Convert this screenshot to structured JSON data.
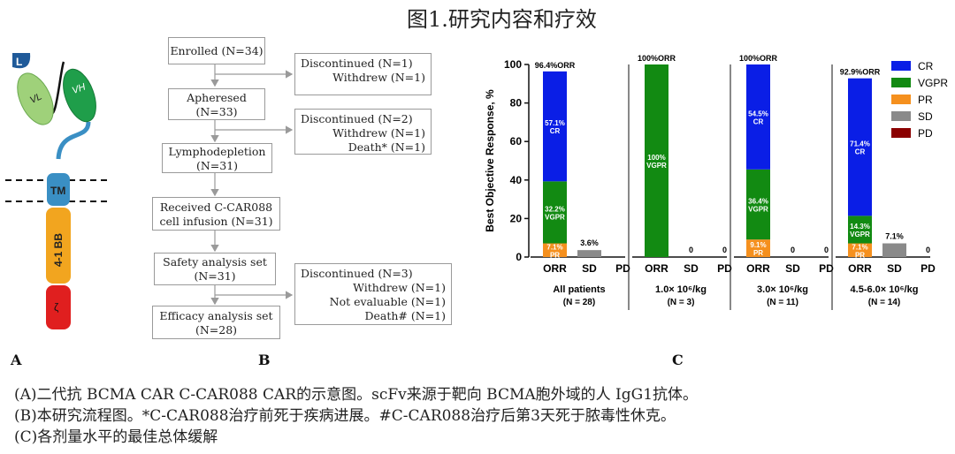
{
  "title": "图1.研究内容和疗效",
  "panel_labels": {
    "a": "A",
    "b": "B",
    "c": "C"
  },
  "captions": [
    "(A)二代抗 BCMA CAR C-CAR088 CAR的示意图。scFv来源于靶向 BCMA胞外域的人 IgG1抗体。",
    "(B)本研究流程图。*C-CAR088治疗前死于疾病进展。#C-CAR088治疗后第3天死于脓毒性休克。",
    "(C)各剂量水平的最佳总体缓解"
  ],
  "car_diagram": {
    "leader": "L",
    "vl": "VL",
    "vh": "VH",
    "tm": "TM",
    "costim": "4-1 BB",
    "zeta": "ζ",
    "colors": {
      "leader": "#1f5a99",
      "vl": "#9fd17a",
      "vh": "#1f9e4a",
      "hinge": "#3a8fc4",
      "tm": "#3a8fc4",
      "costim": "#f2a51f",
      "zeta": "#e01f1f"
    }
  },
  "flowchart": {
    "enrolled": [
      "Enrolled (N=34)"
    ],
    "apheresed": [
      "Apheresed",
      "(N=33)"
    ],
    "lymphodepletion": [
      "Lymphodepletion",
      "(N=31)"
    ],
    "received": [
      "Received C-CAR088",
      "cell infusion (N=31)"
    ],
    "safety": [
      "Safety analysis set",
      "(N=31)"
    ],
    "efficacy": [
      "Efficacy analysis set",
      "(N=28)"
    ],
    "side1": {
      "head": "Discontinued (N=1)",
      "items": [
        "Withdrew (N=1)"
      ]
    },
    "side2": {
      "head": "Discontinued (N=2)",
      "items": [
        "Withdrew (N=1)",
        "Death* (N=1)"
      ]
    },
    "side3": {
      "head": "Discontinued (N=3)",
      "items": [
        "Withdrew (N=1)",
        "Not evaluable (N=1)",
        "Death# (N=1)"
      ]
    }
  },
  "chart_data": {
    "type": "bar",
    "stacked": true,
    "ylabel": "Best Objective Response, %",
    "ylim": [
      0,
      100
    ],
    "yticks": [
      0,
      20,
      40,
      60,
      80,
      100
    ],
    "legend_position": "right",
    "legend": [
      {
        "name": "CR",
        "color": "#0a1ee6"
      },
      {
        "name": "VGPR",
        "color": "#128a12"
      },
      {
        "name": "PR",
        "color": "#f5901e"
      },
      {
        "name": "SD",
        "color": "#8a8a8a"
      },
      {
        "name": "PD",
        "color": "#8b0000"
      }
    ],
    "groups": [
      {
        "label": "All patients",
        "sublabel": "(N = 28)",
        "orr_label": "96.4%ORR",
        "categories": [
          "ORR",
          "SD",
          "PD"
        ],
        "bars": [
          {
            "segments": [
              {
                "name": "PR",
                "value": 7.1,
                "label": "7.1%",
                "sub": "PR"
              },
              {
                "name": "VGPR",
                "value": 32.2,
                "label": "32.2%",
                "sub": "VGPR"
              },
              {
                "name": "CR",
                "value": 57.1,
                "label": "57.1%",
                "sub": "CR"
              }
            ]
          },
          {
            "segments": [
              {
                "name": "SD",
                "value": 3.6
              }
            ],
            "top_label": "3.6%"
          },
          {
            "segments": [
              {
                "name": "PD",
                "value": 0
              }
            ],
            "top_label": ""
          }
        ]
      },
      {
        "label": "1.0× 10⁶/kg",
        "sublabel": "(N = 3)",
        "orr_label": "100%ORR",
        "categories": [
          "ORR",
          "SD",
          "PD"
        ],
        "bars": [
          {
            "segments": [
              {
                "name": "VGPR",
                "value": 100,
                "label": "100%",
                "sub": "VGPR"
              }
            ]
          },
          {
            "segments": [
              {
                "name": "SD",
                "value": 0
              }
            ],
            "top_label": "0"
          },
          {
            "segments": [
              {
                "name": "PD",
                "value": 0
              }
            ],
            "top_label": "0"
          }
        ]
      },
      {
        "label": "3.0× 10⁶/kg",
        "sublabel": "(N = 11)",
        "orr_label": "100%ORR",
        "categories": [
          "ORR",
          "SD",
          "PD"
        ],
        "bars": [
          {
            "segments": [
              {
                "name": "PR",
                "value": 9.1,
                "label": "9.1%",
                "sub": "PR"
              },
              {
                "name": "VGPR",
                "value": 36.4,
                "label": "36.4%",
                "sub": "VGPR"
              },
              {
                "name": "CR",
                "value": 54.5,
                "label": "54.5%",
                "sub": "CR"
              }
            ]
          },
          {
            "segments": [
              {
                "name": "SD",
                "value": 0
              }
            ],
            "top_label": "0"
          },
          {
            "segments": [
              {
                "name": "PD",
                "value": 0
              }
            ],
            "top_label": "0"
          }
        ]
      },
      {
        "label": "4.5-6.0× 10⁶/kg",
        "sublabel": "(N = 14)",
        "orr_label": "92.9%ORR",
        "categories": [
          "ORR",
          "SD",
          "PD"
        ],
        "bars": [
          {
            "segments": [
              {
                "name": "PR",
                "value": 7.1,
                "label": "7.1%",
                "sub": "PR"
              },
              {
                "name": "VGPR",
                "value": 14.3,
                "label": "14.3%",
                "sub": "VGPR"
              },
              {
                "name": "CR",
                "value": 71.4,
                "label": "71.4%",
                "sub": "CR"
              }
            ]
          },
          {
            "segments": [
              {
                "name": "SD",
                "value": 7.1
              }
            ],
            "top_label": "7.1%"
          },
          {
            "segments": [
              {
                "name": "PD",
                "value": 0
              }
            ],
            "top_label": "0"
          }
        ]
      }
    ]
  }
}
